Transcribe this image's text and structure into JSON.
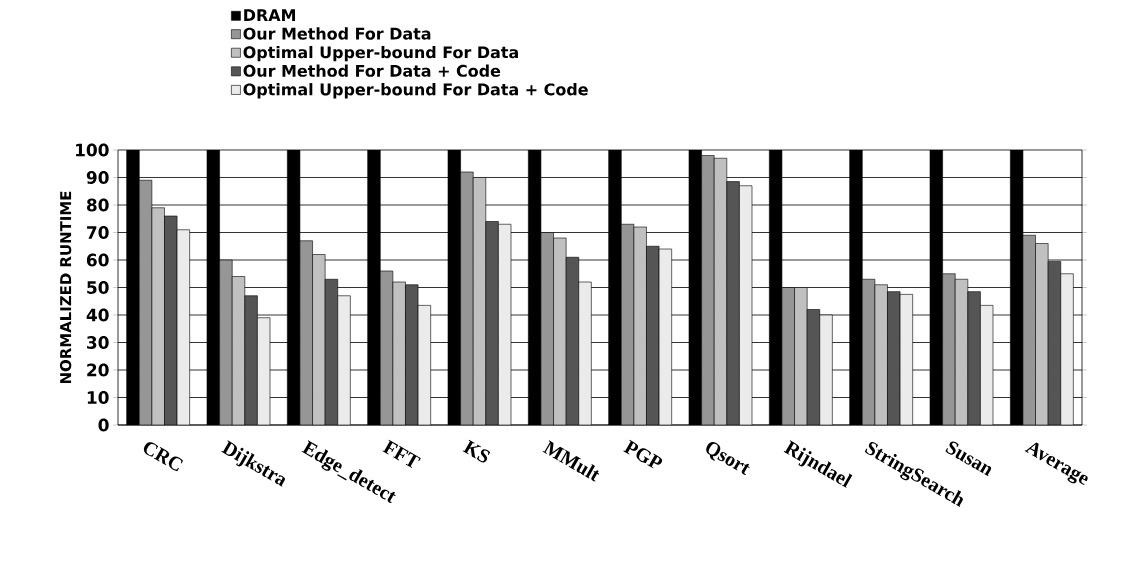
{
  "chart_data": {
    "type": "bar",
    "ylabel": "NORMALIZED RUNTIME",
    "categories": [
      "CRC",
      "Dijkstra",
      "Edge_detect",
      "FFT",
      "KS",
      "MMult",
      "PGP",
      "Qsort",
      "Rijndael",
      "StringSearch",
      "Susan",
      "Average"
    ],
    "series": [
      {
        "name": "DRAM",
        "color": "#000000",
        "values": [
          100,
          100,
          100,
          100,
          100,
          100,
          100,
          100,
          100,
          100,
          100,
          100
        ]
      },
      {
        "name": "Our Method For Data",
        "color": "#969696",
        "values": [
          89,
          60,
          67,
          56,
          92,
          70,
          73,
          98,
          50,
          53,
          55,
          69
        ]
      },
      {
        "name": "Optimal Upper-bound For Data",
        "color": "#c0c0c0",
        "values": [
          79,
          54,
          62,
          52,
          90,
          68,
          72,
          97,
          50,
          51,
          53,
          66
        ]
      },
      {
        "name": "Our Method For Data + Code",
        "color": "#555555",
        "values": [
          76,
          47,
          53,
          51,
          74,
          61,
          65,
          88.5,
          42,
          48.5,
          48.5,
          59.5
        ]
      },
      {
        "name": "Optimal Upper-bound For Data + Code",
        "color": "#ebebeb",
        "values": [
          71,
          39,
          47,
          43.5,
          73,
          52,
          64,
          87,
          40,
          47.5,
          43.5,
          55
        ]
      }
    ],
    "ylim": [
      0,
      100
    ],
    "yticks": [
      0,
      10,
      20,
      30,
      40,
      50,
      60,
      70,
      80,
      90,
      100
    ],
    "grid": "y",
    "legend": "top left"
  }
}
